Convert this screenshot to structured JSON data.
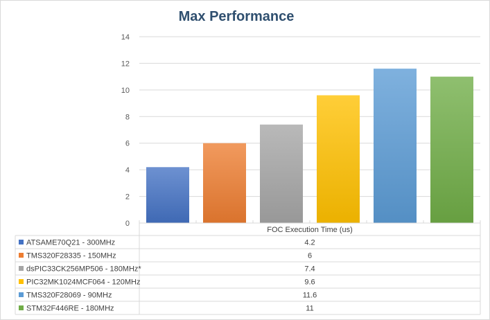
{
  "chart_data": {
    "type": "bar",
    "title": "Max Performance",
    "table_header": "FOC Execution Time (us)",
    "ylim": [
      0,
      14
    ],
    "yticks": [
      0,
      2,
      4,
      6,
      8,
      10,
      12,
      14
    ],
    "grid": true,
    "legend": "data table below chart",
    "series": [
      {
        "name": "ATSAME70Q21 - 300MHz",
        "value": 4.2,
        "label": "4.2",
        "color": "#4472c4"
      },
      {
        "name": "TMS320F28335 - 150MHz",
        "value": 6,
        "label": "6",
        "color": "#ed7d31"
      },
      {
        "name": "dsPIC33CK256MP506 - 180MHz*",
        "value": 7.4,
        "label": "7.4",
        "color": "#a5a5a5"
      },
      {
        "name": "PIC32MK1024MCF064 - 120MHz",
        "value": 9.6,
        "label": "9.6",
        "color": "#ffc000"
      },
      {
        "name": "TMS320F28069 - 90MHz",
        "value": 11.6,
        "label": "11.6",
        "color": "#5b9bd5"
      },
      {
        "name": "STM32F446RE - 180MHz",
        "value": 11,
        "label": "11",
        "color": "#70ad47"
      }
    ]
  }
}
